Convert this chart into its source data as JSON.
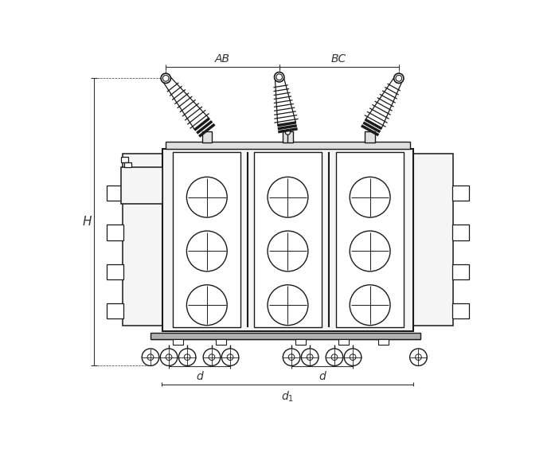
{
  "bg_color": "#ffffff",
  "line_color": "#1a1a1a",
  "dim_color": "#333333",
  "gray_fill": "#b0b0b0",
  "light_fill": "#f5f5f5",
  "mid_fill": "#e0e0e0",
  "figsize": [
    6.97,
    5.69
  ],
  "dpi": 100,
  "label_H": "H",
  "label_AB": "AB",
  "label_BC": "BC",
  "label_d": "d",
  "label_d1": "d₁"
}
